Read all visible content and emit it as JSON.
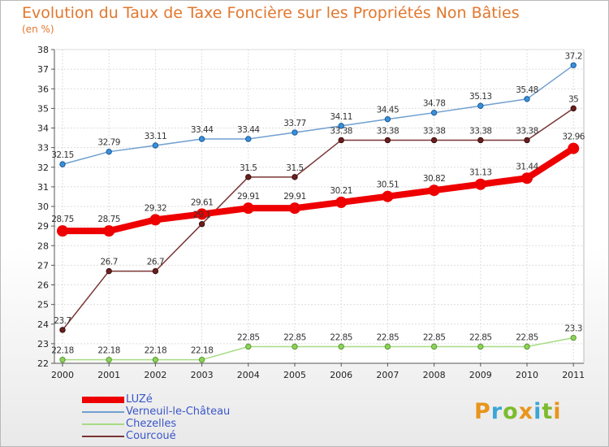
{
  "title": "Evolution du Taux de Taxe Foncière sur les Propriétés Non Bâties",
  "subtitle": "(en %)",
  "brand": {
    "letters": [
      "P",
      "r",
      "o",
      "x",
      "i",
      "t",
      "i"
    ],
    "colors": [
      "#e8951c",
      "#3aa6d6",
      "#7dbb2e",
      "#e8951c",
      "#3aa6d6",
      "#7dbb2e",
      "#e8951c"
    ]
  },
  "chart_data": {
    "type": "line",
    "title": "Evolution du Taux de Taxe Foncière sur les Propriétés Non Bâties",
    "ylabel": "(en %)",
    "xlabel": "",
    "x": [
      "2000",
      "2001",
      "2002",
      "2003",
      "2004",
      "2005",
      "2006",
      "2007",
      "2008",
      "2009",
      "2010",
      "2011"
    ],
    "ylim": [
      22,
      38
    ],
    "yticks": [
      "22",
      "23",
      "24",
      "25",
      "26",
      "27",
      "28",
      "29",
      "30",
      "31",
      "32",
      "33",
      "34",
      "35",
      "36",
      "37",
      "38"
    ],
    "grid": true,
    "legend_position": "bottom-left",
    "series": [
      {
        "name": "LUZé",
        "color": "#ee0000",
        "values": [
          28.75,
          28.75,
          29.32,
          29.61,
          29.91,
          29.91,
          30.21,
          30.51,
          30.82,
          31.13,
          31.44,
          32.96
        ],
        "labels": [
          "28.75",
          "28.75",
          "29.32",
          "29.61",
          "29.91",
          "29.91",
          "30.21",
          "30.51",
          "30.82",
          "31.13",
          "31.44",
          "32.96"
        ]
      },
      {
        "name": "Verneuil-le-Château",
        "color": "#6f9fd0",
        "values": [
          32.15,
          32.79,
          33.11,
          33.44,
          33.44,
          33.77,
          34.11,
          34.45,
          34.78,
          35.13,
          35.48,
          37.2
        ],
        "labels": [
          "32.15",
          "32.79",
          "33.11",
          "33.44",
          "33.44",
          "33.77",
          "34.11",
          "34.45",
          "34.78",
          "35.13",
          "35.48",
          "37.2"
        ]
      },
      {
        "name": "Chezelles",
        "color": "#a8db84",
        "values": [
          22.18,
          22.18,
          22.18,
          22.18,
          22.85,
          22.85,
          22.85,
          22.85,
          22.85,
          22.85,
          22.85,
          23.3
        ],
        "labels": [
          "22.18",
          "22.18",
          "22.18",
          "22.18",
          "22.85",
          "22.85",
          "22.85",
          "22.85",
          "22.85",
          "22.85",
          "22.85",
          "23.3"
        ]
      },
      {
        "name": "Courcoué",
        "color": "#7a3535",
        "values": [
          23.7,
          26.7,
          26.7,
          29.1,
          31.5,
          31.5,
          33.38,
          33.38,
          33.38,
          33.38,
          33.38,
          35
        ],
        "labels": [
          "23.7",
          "26.7",
          "26.7",
          "29.1",
          "31.5",
          "31.5",
          "33.38",
          "33.38",
          "33.38",
          "33.38",
          "33.38",
          "35"
        ]
      }
    ]
  }
}
